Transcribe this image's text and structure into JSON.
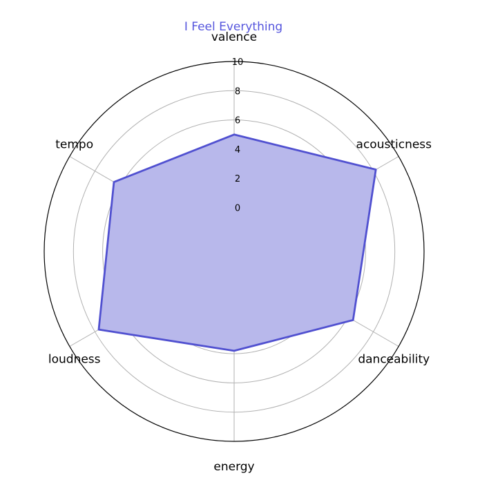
{
  "chart_data": {
    "type": "radar",
    "title": "I Feel Everything",
    "axes": [
      "valence",
      "acousticness",
      "danceability",
      "energy",
      "loudness",
      "tempo"
    ],
    "series": [
      {
        "values": [
          5.0,
          8.2,
          6.4,
          3.8,
          7.7,
          6.5
        ]
      }
    ],
    "rlim": [
      -3,
      10
    ],
    "rticks": [
      0,
      2,
      4,
      6,
      8,
      10
    ],
    "grid": true,
    "colors": {
      "title": "#5555dd",
      "line": "#5050d0",
      "fill": "#b8b8eb",
      "grid": "#b0b0b0",
      "outer": "#000000"
    }
  }
}
